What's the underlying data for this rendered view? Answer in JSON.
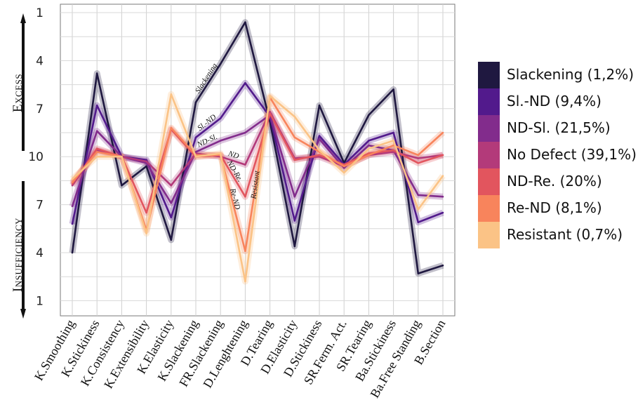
{
  "chart_data": {
    "type": "line",
    "y_side_labels": {
      "top": "Excess",
      "bottom": "Insufficiency"
    },
    "yticks": [
      "1",
      "4",
      "7",
      "10",
      "7",
      "4",
      "1"
    ],
    "ylim": [
      1,
      19
    ],
    "categories": [
      "K.Smoothing",
      "K.Stickiness",
      "K.Consistency",
      "K.Extensibility",
      "K.Elasticity",
      "K.Slackening",
      "FR.Slackening",
      "D.Lenghtening",
      "D.Tearing",
      "D.Elasticity",
      "D.Stickiness",
      "SR.Ferm. Act.",
      "SR.Tearing",
      "Ba.Stickiness",
      "Ba.Free Standing",
      "B.Section"
    ],
    "series": [
      {
        "name": "Slackening (1,2%)",
        "color": "#1f1840",
        "inline_label": "Slackening",
        "label_at": 5,
        "values": [
          16,
          4.8,
          11.8,
          10.6,
          15.2,
          6.6,
          4.2,
          1.6,
          7.8,
          15.6,
          6.8,
          10.4,
          7.4,
          5.8,
          17.3,
          16.8
        ]
      },
      {
        "name": "Sl.-ND (9,4%)",
        "color": "#521a8c",
        "inline_label": "Sl.-ND",
        "label_at": 5,
        "values": [
          14.2,
          6.8,
          10,
          10.2,
          13.8,
          8.8,
          7.6,
          5.4,
          7.5,
          14,
          8.7,
          10.5,
          9,
          8.5,
          14.1,
          13.5
        ]
      },
      {
        "name": "ND-Sl. (21,5%)",
        "color": "#822c8c",
        "inline_label": "ND-Sl.",
        "label_at": 5,
        "values": [
          13.1,
          8.4,
          10,
          10.4,
          12.9,
          9.7,
          9,
          8.5,
          7.4,
          12.5,
          8.9,
          10.7,
          9.3,
          9.6,
          12.4,
          12.5
        ]
      },
      {
        "name": "No Defect (39,1%)",
        "color": "#b33a7a",
        "inline_label": "ND",
        "label_at": 6,
        "values": [
          11.8,
          9.6,
          10,
          10.3,
          11.8,
          9.8,
          10,
          10.5,
          7.2,
          10.1,
          10,
          10.6,
          9.9,
          9.7,
          10.1,
          9.9
        ]
      },
      {
        "name": "ND-Re. (20%)",
        "color": "#e2555e",
        "inline_label": "ND-Re.",
        "label_at": 6,
        "values": [
          11.7,
          9.5,
          10,
          13.5,
          8.3,
          10,
          9.9,
          12.5,
          7.3,
          10.2,
          9.9,
          10.5,
          9.8,
          9.6,
          10.4,
          9.9
        ]
      },
      {
        "name": "Re-ND (8,1%)",
        "color": "#f8845c",
        "inline_label": "Re-ND",
        "label_at": 6,
        "values": [
          11.6,
          9.7,
          10,
          14.6,
          8.2,
          9.9,
          9.9,
          15.9,
          6.3,
          8.8,
          9.7,
          10.6,
          9.9,
          9.3,
          9.9,
          8.5
        ]
      },
      {
        "name": "Resistant (0,7%)",
        "color": "#fbc386",
        "inline_label": "Resistant",
        "label_at": 7,
        "values": [
          11.4,
          10,
          10,
          14.8,
          6.1,
          10,
          9.8,
          17.8,
          6.2,
          7.5,
          9.6,
          11,
          9.5,
          9,
          13.3,
          11.2
        ]
      }
    ]
  }
}
